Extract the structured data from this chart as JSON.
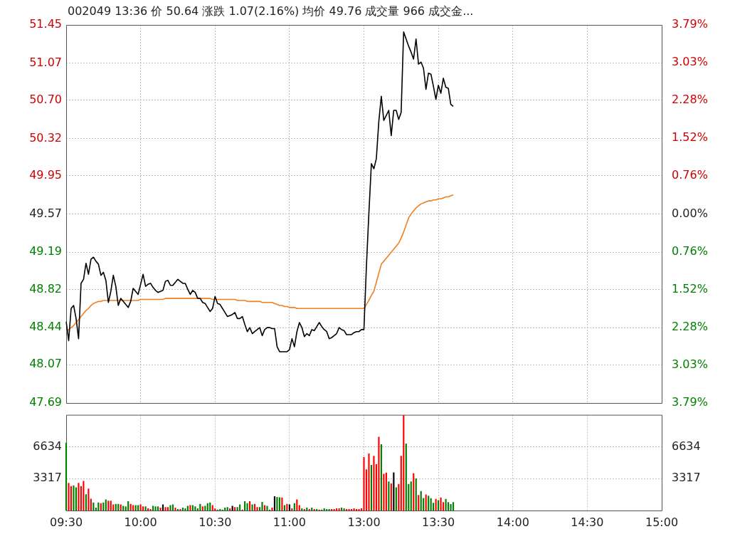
{
  "chart_data": [
    {
      "type": "line",
      "title": "002049 13:36 价 50.64 涨跌 1.07(2.16%) 均价 49.76 成交量 966 成交金...",
      "categories": [
        null,
        null,
        null,
        null,
        null,
        null,
        null,
        null,
        null,
        null,
        null,
        null,
        null,
        null,
        null,
        null,
        null,
        null,
        null,
        null,
        null,
        null,
        null,
        null,
        null,
        null,
        null,
        null,
        null,
        null,
        null,
        null,
        null,
        null,
        null,
        null,
        null,
        null,
        null,
        null,
        null,
        null,
        null,
        null,
        null,
        null,
        null,
        null,
        null,
        null,
        null,
        null,
        null,
        null,
        null,
        null,
        null,
        null,
        null,
        null,
        null,
        null,
        null,
        null,
        null,
        null,
        null,
        null,
        null,
        null,
        null,
        null,
        null,
        null,
        null,
        null,
        null,
        null,
        null,
        null,
        null,
        null,
        null,
        null,
        null,
        null,
        null,
        null,
        null,
        null,
        null,
        null,
        null,
        null,
        null,
        null,
        null,
        null,
        null,
        null,
        null,
        null,
        null,
        null,
        null,
        null,
        null,
        null,
        null,
        null,
        null,
        null,
        null,
        null,
        null,
        null,
        null,
        null,
        null,
        null,
        null,
        null,
        null,
        null,
        null,
        null,
        null,
        null,
        null,
        null,
        null,
        null,
        null,
        null,
        null,
        null,
        null,
        null,
        null,
        null,
        null,
        null,
        null,
        null,
        null,
        null,
        null,
        null,
        null,
        null,
        null,
        null,
        null,
        null,
        null,
        null,
        null,
        null,
        null,
        null,
        null,
        null,
        null,
        null,
        null,
        null,
        null,
        null,
        null,
        null,
        null,
        null,
        null,
        null,
        null,
        null,
        null,
        null,
        null,
        null,
        null,
        null,
        null,
        null,
        null,
        null,
        null,
        null,
        null,
        null,
        null,
        null,
        null,
        null,
        null,
        null,
        null,
        null,
        null,
        null,
        null,
        null,
        null,
        null,
        null,
        null,
        null,
        null,
        null,
        null,
        null,
        null,
        null,
        null,
        null,
        null,
        null,
        null,
        null,
        null,
        null,
        null,
        null,
        null,
        null,
        null,
        null,
        null,
        null,
        null,
        null,
        null,
        null,
        null,
        null,
        null,
        null,
        null,
        null,
        null,
        null
      ],
      "ylim": [
        47.69,
        51.45
      ],
      "yticks": [
        47.69,
        48.07,
        48.44,
        48.82,
        49.19,
        49.57,
        49.95,
        50.32,
        {
          "value": 50.7,
          "label": "50.70"
        },
        51.07,
        51.45
      ],
      "y2lim": [
        -3.79,
        3.79
      ],
      "y2ticks": [
        {
          "value": -3.79,
          "label": "3.79%"
        },
        {
          "value": -3.03,
          "label": "3.03%"
        },
        {
          "value": -2.28,
          "label": "2.28%"
        },
        {
          "value": -1.52,
          "label": "1.52%"
        },
        {
          "value": -0.76,
          "label": "0.76%"
        },
        {
          "value": 0,
          "label": "0.00%"
        },
        {
          "value": 0.76,
          "label": "0.76%"
        },
        {
          "value": 1.52,
          "label": "1.52%"
        },
        {
          "value": 2.28,
          "label": "2.28%"
        },
        {
          "value": 3.03,
          "label": "3.03%"
        },
        {
          "value": 3.79,
          "label": "3.79%"
        }
      ],
      "grid": true,
      "tick_labels": "y",
      "series": [
        {
          "color": "#000000",
          "values": [
            48.5,
            48.31,
            48.63,
            48.66,
            48.53,
            48.33,
            48.88,
            48.92,
            49.08,
            48.97,
            49.12,
            49.14,
            49.1,
            49.07,
            48.96,
            48.99,
            48.91,
            48.69,
            48.8,
            48.96,
            48.85,
            48.66,
            48.73,
            48.7,
            48.67,
            48.64,
            48.7,
            48.83,
            48.8,
            48.77,
            48.87,
            48.97,
            48.85,
            48.87,
            48.88,
            48.84,
            48.81,
            48.79,
            48.8,
            48.81,
            48.9,
            48.91,
            48.86,
            48.86,
            48.89,
            48.92,
            48.9,
            48.88,
            48.88,
            48.82,
            48.77,
            48.81,
            48.79,
            48.73,
            48.73,
            48.69,
            48.68,
            48.64,
            48.6,
            48.63,
            48.75,
            48.68,
            48.67,
            48.63,
            48.59,
            48.55,
            48.56,
            48.57,
            48.59,
            48.53,
            48.53,
            48.55,
            48.47,
            48.4,
            48.44,
            48.38,
            48.4,
            48.42,
            48.44,
            48.36,
            48.42,
            48.44,
            48.44,
            48.43,
            48.43,
            48.25,
            48.2,
            48.2,
            48.2,
            48.2,
            48.22,
            48.33,
            48.25,
            48.4,
            48.49,
            48.44,
            48.35,
            48.38,
            48.36,
            48.42,
            48.41,
            48.45,
            48.49,
            48.45,
            48.42,
            48.4,
            48.33,
            48.34,
            48.36,
            48.38,
            48.44,
            48.42,
            48.41,
            48.37,
            48.37,
            48.37,
            48.39,
            48.4,
            48.4,
            48.42,
            48.42,
            49.05,
            49.58,
            50.07,
            50.02,
            50.12,
            50.49,
            50.74,
            50.5,
            50.55,
            50.6,
            50.35,
            50.6,
            50.6,
            50.51,
            50.58,
            51.38,
            51.31,
            51.24,
            51.18,
            51.11,
            51.31,
            51.06,
            51.08,
            51.02,
            50.81,
            50.97,
            50.96,
            50.84,
            50.71,
            50.85,
            50.77,
            50.92,
            50.83,
            50.82,
            50.66,
            50.64,
            null,
            null,
            null,
            null,
            null,
            null,
            null,
            null,
            null,
            null,
            null,
            null,
            null,
            null,
            null,
            null,
            null,
            null,
            null,
            null,
            null,
            null,
            null,
            null,
            null,
            null,
            null,
            null,
            null,
            null,
            null,
            null,
            null,
            null,
            null,
            null,
            null,
            null,
            null,
            null,
            null,
            null,
            null,
            null,
            null,
            null,
            null,
            null,
            null,
            null,
            null,
            null,
            null,
            null,
            null,
            null,
            null,
            null,
            null,
            null,
            null,
            null,
            null,
            null,
            null,
            null,
            null,
            null,
            null,
            null,
            null,
            null,
            null,
            null,
            null,
            null,
            null,
            null,
            null,
            null,
            null,
            null,
            null,
            null
          ]
        },
        {
          "color": "#f07f20",
          "values": [
            48.4,
            48.42,
            48.44,
            48.46,
            48.49,
            48.52,
            48.55,
            48.58,
            48.61,
            48.63,
            48.66,
            48.68,
            48.69,
            48.7,
            48.7,
            48.71,
            48.71,
            48.71,
            48.71,
            48.71,
            48.71,
            48.71,
            48.71,
            48.71,
            48.71,
            48.71,
            48.71,
            48.71,
            48.71,
            48.71,
            48.72,
            48.72,
            48.72,
            48.72,
            48.72,
            48.72,
            48.72,
            48.72,
            48.72,
            48.72,
            48.73,
            48.73,
            48.73,
            48.73,
            48.73,
            48.73,
            48.73,
            48.73,
            48.73,
            48.73,
            48.73,
            48.73,
            48.73,
            48.73,
            48.73,
            48.73,
            48.73,
            48.73,
            48.73,
            48.72,
            48.72,
            48.72,
            48.72,
            48.72,
            48.72,
            48.72,
            48.72,
            48.72,
            48.72,
            48.71,
            48.71,
            48.71,
            48.71,
            48.7,
            48.7,
            48.7,
            48.7,
            48.7,
            48.7,
            48.69,
            48.69,
            48.69,
            48.69,
            48.69,
            48.68,
            48.67,
            48.66,
            48.66,
            48.65,
            48.65,
            48.64,
            48.64,
            48.64,
            48.63,
            48.63,
            48.63,
            48.63,
            48.63,
            48.63,
            48.63,
            48.63,
            48.63,
            48.63,
            48.63,
            48.63,
            48.63,
            48.63,
            48.63,
            48.63,
            48.63,
            48.63,
            48.63,
            48.63,
            48.63,
            48.63,
            48.63,
            48.63,
            48.63,
            48.63,
            48.63,
            48.63,
            48.67,
            48.71,
            48.76,
            48.8,
            48.89,
            48.98,
            49.07,
            49.1,
            49.13,
            49.16,
            49.19,
            49.22,
            49.25,
            49.28,
            49.33,
            49.39,
            49.46,
            49.53,
            49.57,
            49.6,
            49.63,
            49.65,
            49.67,
            49.68,
            49.69,
            49.7,
            49.7,
            49.71,
            49.71,
            49.72,
            49.72,
            49.73,
            49.74,
            49.74,
            49.75,
            49.76,
            null,
            null,
            null,
            null,
            null,
            null,
            null,
            null,
            null,
            null,
            null,
            null,
            null,
            null,
            null,
            null,
            null,
            null,
            null,
            null,
            null,
            null,
            null,
            null,
            null,
            null,
            null,
            null,
            null,
            null,
            null,
            null,
            null,
            null,
            null,
            null,
            null,
            null,
            null,
            null,
            null,
            null,
            null,
            null,
            null,
            null,
            null,
            null,
            null,
            null,
            null,
            null,
            null,
            null,
            null,
            null,
            null,
            null,
            null,
            null,
            null,
            null,
            null,
            null,
            null,
            null,
            null,
            null,
            null,
            null,
            null,
            null,
            null,
            null,
            null,
            null,
            null,
            null,
            null,
            null,
            null,
            null,
            null,
            null
          ]
        }
      ]
    },
    {
      "type": "bar",
      "categories": [
        "09:30",
        null,
        null,
        null,
        null,
        null,
        null,
        null,
        null,
        null,
        null,
        null,
        null,
        null,
        null,
        null,
        null,
        null,
        null,
        null,
        null,
        null,
        null,
        null,
        null,
        null,
        null,
        null,
        null,
        null,
        "10:00",
        null,
        null,
        null,
        null,
        null,
        null,
        null,
        null,
        null,
        null,
        null,
        null,
        null,
        null,
        null,
        null,
        null,
        null,
        null,
        null,
        null,
        null,
        null,
        null,
        null,
        null,
        null,
        null,
        null,
        "10:30",
        null,
        null,
        null,
        null,
        null,
        null,
        null,
        null,
        null,
        null,
        null,
        null,
        null,
        null,
        null,
        null,
        null,
        null,
        null,
        null,
        null,
        null,
        null,
        null,
        null,
        null,
        null,
        null,
        null,
        "11:00",
        null,
        null,
        null,
        null,
        null,
        null,
        null,
        null,
        null,
        null,
        null,
        null,
        null,
        null,
        null,
        null,
        null,
        null,
        null,
        null,
        null,
        null,
        null,
        null,
        null,
        null,
        null,
        null,
        null,
        "13:00",
        null,
        null,
        null,
        null,
        null,
        null,
        null,
        null,
        null,
        null,
        null,
        null,
        null,
        null,
        null,
        null,
        null,
        null,
        null,
        null,
        null,
        null,
        null,
        null,
        null,
        null,
        null,
        null,
        null,
        "13:30",
        null,
        null,
        null,
        null,
        null,
        null,
        null,
        null,
        null,
        null,
        null,
        null,
        null,
        null,
        null,
        null,
        null,
        null,
        null,
        null,
        null,
        null,
        null,
        null,
        null,
        null,
        null,
        null,
        null,
        "14:00",
        null,
        null,
        null,
        null,
        null,
        null,
        null,
        null,
        null,
        null,
        null,
        null,
        null,
        null,
        null,
        null,
        null,
        null,
        null,
        null,
        null,
        null,
        null,
        null,
        null,
        null,
        null,
        null,
        null,
        "14:30",
        null,
        null,
        null,
        null,
        null,
        null,
        null,
        null,
        null,
        null,
        null,
        null,
        null,
        null,
        null,
        null,
        null,
        null,
        null,
        null,
        null,
        null,
        null,
        null,
        null,
        null,
        null,
        null,
        null,
        "15:00"
      ],
      "ylim": [
        0,
        9951
      ],
      "yticks": [
        3317,
        6634
      ],
      "y2lim": [
        0,
        9951
      ],
      "y2ticks": [
        3317,
        6634
      ],
      "grid": true,
      "values": [
        7030,
        2850,
        2520,
        2590,
        2390,
        2850,
        2520,
        3050,
        1660,
        2260,
        1190,
        800,
        270,
        800,
        730,
        800,
        1130,
        1000,
        1000,
        600,
        660,
        660,
        600,
        460,
        400,
        930,
        660,
        530,
        530,
        530,
        600,
        400,
        400,
        200,
        130,
        460,
        400,
        400,
        270,
        600,
        330,
        330,
        530,
        600,
        270,
        130,
        130,
        270,
        200,
        460,
        530,
        530,
        400,
        200,
        660,
        400,
        460,
        730,
        800,
        530,
        200,
        70,
        130,
        70,
        270,
        330,
        200,
        460,
        330,
        330,
        600,
        70,
        930,
        730,
        930,
        600,
        660,
        330,
        330,
        860,
        530,
        460,
        70,
        270,
        1460,
        1390,
        1350,
        1330,
        530,
        660,
        600,
        200,
        730,
        1130,
        530,
        200,
        130,
        270,
        130,
        270,
        130,
        130,
        70,
        70,
        200,
        130,
        130,
        130,
        130,
        200,
        200,
        270,
        200,
        130,
        130,
        130,
        200,
        130,
        130,
        200,
        5520,
        4250,
        5900,
        4710,
        5650,
        4780,
        7640,
        6860,
        3780,
        3910,
        2990,
        2790,
        3930,
        2390,
        2730,
        5650,
        9900,
        6930,
        2730,
        2990,
        3840,
        3310,
        1590,
        1990,
        1270,
        1650,
        1520,
        1250,
        780,
        1180,
        1050,
        1320,
        850,
        1180,
        850,
        650,
        850,
        null,
        null,
        null,
        null,
        null,
        null,
        null,
        null,
        null,
        null,
        null,
        null,
        null,
        null,
        null,
        null,
        null,
        null,
        null,
        null,
        null,
        null,
        null,
        null,
        null,
        null,
        null,
        null,
        null,
        null,
        null,
        null,
        null,
        null,
        null,
        null,
        null,
        null,
        null,
        null,
        null,
        null,
        null,
        null,
        null,
        null,
        null,
        null,
        null,
        null,
        null,
        null,
        null,
        null,
        null,
        null,
        null,
        null,
        null,
        null,
        null,
        null,
        null,
        null,
        null,
        null,
        null,
        null,
        null,
        null,
        null,
        null,
        null,
        null,
        null,
        null,
        null,
        null,
        null,
        null,
        null,
        null,
        null,
        null
      ],
      "colors": [
        "#008000",
        "#ff0000",
        "#ff0000",
        "#008000",
        "#008000",
        "#ff0000",
        "#ff0000",
        "#ff0000",
        "#008000",
        "#ff0000",
        "#ff0000",
        "#008000",
        "#008000",
        "#008000",
        "#ff0000",
        "#008000",
        "#008000",
        "#ff0000",
        "#ff0000",
        "#ff0000",
        "#008000",
        "#008000",
        "#ff0000",
        "#008000",
        "#008000",
        "#008000",
        "#ff0000",
        "#ff0000",
        "#008000",
        "#008000",
        "#ff0000",
        "#ff0000",
        "#008000",
        "#ff0000",
        "#ff0000",
        "#008000",
        "#008000",
        "#008000",
        "#ff0000",
        "#000000",
        "#ff0000",
        "#ff0000",
        "#008000",
        "#008000",
        "#ff0000",
        "#008000",
        "#ff0000",
        "#008000",
        "#008000",
        "#008000",
        "#ff0000",
        "#008000",
        "#008000",
        "#008000",
        "#008000",
        "#ff0000",
        "#008000",
        "#008000",
        "#008000",
        "#ff0000",
        "#ff0000",
        "#008000",
        "#008000",
        "#008000",
        "#008000",
        "#008000",
        "#ff0000",
        "#000000",
        "#ff0000",
        "#008000",
        "#008000",
        "#ff0000",
        "#008000",
        "#008000",
        "#ff0000",
        "#008000",
        "#ff0000",
        "#ff0000",
        "#008000",
        "#008000",
        "#ff0000",
        "#008000",
        "#008000",
        "#ff0000",
        "#000000",
        "#008000",
        "#008000",
        "#ff0000",
        "#008000",
        "#ff0000",
        "#000000",
        "#ff0000",
        "#008000",
        "#ff0000",
        "#ff0000",
        "#008000",
        "#ff0000",
        "#008000",
        "#ff0000",
        "#008000",
        "#ff0000",
        "#008000",
        "#ff0000",
        "#008000",
        "#008000",
        "#008000",
        "#008000",
        "#ff0000",
        "#ff0000",
        "#ff0000",
        "#ff0000",
        "#008000",
        "#008000",
        "#ff0000",
        "#ff0000",
        "#ff0000",
        "#ff0000",
        "#ff0000",
        "#ff0000",
        "#ff0000",
        "#ff0000",
        "#ff0000",
        "#ff0000",
        "#008000",
        "#ff0000",
        "#ff0000",
        "#ff0000",
        "#008000",
        "#ff0000",
        "#ff0000",
        "#008000",
        "#ff0000",
        "#000000",
        "#008000",
        "#ff0000",
        "#ff0000",
        "#ff0000",
        "#008000",
        "#008000",
        "#008000",
        "#ff0000",
        "#008000",
        "#ff0000",
        "#008000",
        "#008000",
        "#ff0000",
        "#008000",
        "#008000",
        "#008000",
        "#ff0000",
        "#008000",
        "#ff0000",
        "#ff0000",
        "#008000",
        "#008000",
        "#008000",
        "#008000",
        "#008000",
        "#008000",
        "#008000",
        "#008000",
        "#008000",
        null,
        null,
        null,
        null,
        null,
        null,
        null,
        null,
        null,
        null,
        null,
        null,
        null,
        null,
        null,
        null,
        null,
        null,
        null,
        null,
        null,
        null,
        null,
        null,
        null,
        null,
        null,
        null,
        null,
        null,
        null,
        null,
        null,
        null,
        null,
        null,
        null,
        null,
        null,
        null,
        null,
        null,
        null,
        null,
        null,
        null,
        null,
        null,
        null,
        null,
        null,
        null,
        null,
        null,
        null,
        null,
        null,
        null,
        null,
        null,
        null,
        null,
        null,
        null,
        null,
        null,
        null,
        null,
        null,
        null,
        null,
        null,
        null,
        null,
        null,
        null,
        null,
        null,
        null
      ]
    }
  ]
}
